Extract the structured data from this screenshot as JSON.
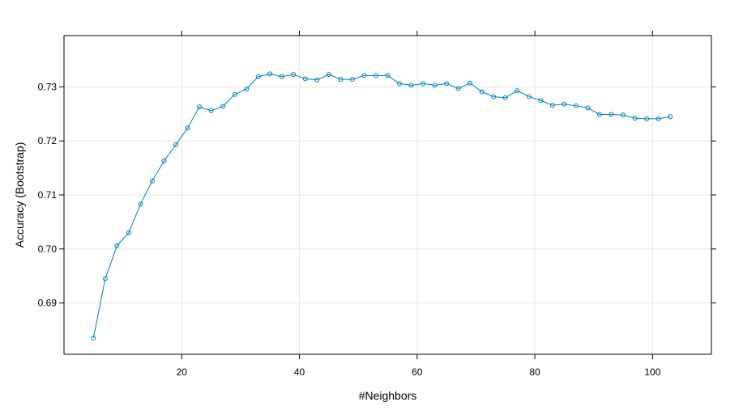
{
  "chart_data": {
    "type": "line",
    "title": "",
    "xlabel": "#Neighbors",
    "ylabel": "Accuracy (Bootstrap)",
    "xlim": [
      0,
      110
    ],
    "ylim": [
      0.6805,
      0.7395
    ],
    "x_ticks": [
      20,
      40,
      60,
      80,
      100
    ],
    "y_ticks": [
      0.69,
      0.7,
      0.71,
      0.72,
      0.73
    ],
    "x_tick_labels": [
      "20",
      "40",
      "60",
      "80",
      "100"
    ],
    "y_tick_labels": [
      "0.69",
      "0.70",
      "0.71",
      "0.72",
      "0.73"
    ],
    "grid": true,
    "marker": "circle",
    "color": "#0080C0",
    "series": [
      {
        "x": [
          5,
          7,
          9,
          11,
          13,
          15,
          17,
          19,
          21,
          23,
          25,
          27,
          29,
          31,
          33,
          35,
          37,
          39,
          41,
          43,
          45,
          47,
          49,
          51,
          53,
          55,
          57,
          59,
          61,
          63,
          65,
          67,
          69,
          71,
          73,
          75,
          77,
          79,
          81,
          83,
          85,
          87,
          89,
          91,
          93,
          95,
          97,
          99,
          101,
          103
        ],
        "values": [
          0.6835,
          0.6945,
          0.7006,
          0.703,
          0.7083,
          0.7126,
          0.7163,
          0.7193,
          0.7224,
          0.7263,
          0.7256,
          0.7264,
          0.7286,
          0.7296,
          0.7319,
          0.7324,
          0.7319,
          0.7323,
          0.7315,
          0.7313,
          0.7323,
          0.7314,
          0.7314,
          0.7321,
          0.7321,
          0.7321,
          0.7306,
          0.7303,
          0.7306,
          0.7303,
          0.7306,
          0.7297,
          0.7307,
          0.7291,
          0.7282,
          0.728,
          0.7293,
          0.7282,
          0.7275,
          0.7266,
          0.7268,
          0.7265,
          0.7261,
          0.7249,
          0.7249,
          0.7248,
          0.7242,
          0.7241,
          0.7241,
          0.7245
        ]
      }
    ]
  }
}
